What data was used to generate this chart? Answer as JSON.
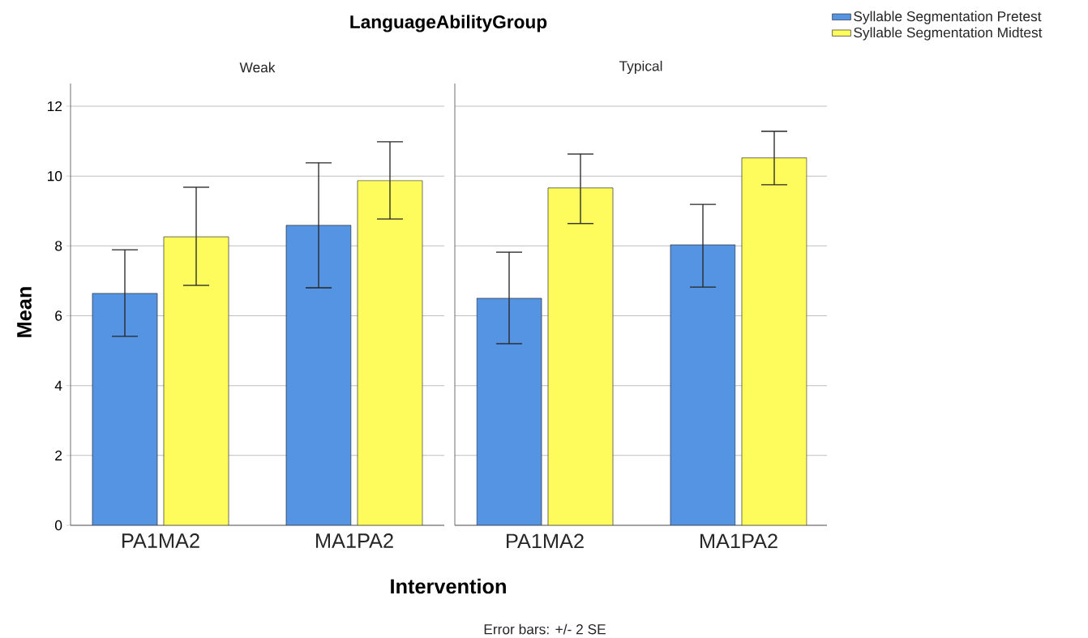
{
  "chart_data": [
    {
      "type": "bar",
      "title": "LanguageAbilityGroup",
      "subtitle": "Weak",
      "xlabel": "Intervention",
      "ylabel": "Mean",
      "annotations": [
        "Error bars: +/- 2 SE"
      ],
      "categories": [
        "PA1MA2",
        "MA1PA2"
      ],
      "ylim": [
        0,
        12.65
      ],
      "yticks": [
        0,
        2,
        4,
        6,
        8,
        10,
        12
      ],
      "grid": "y",
      "series": [
        {
          "color": "#5593e3",
          "values": [
            6.64,
            8.59
          ],
          "errors": [
            [
              5.41,
              7.89
            ],
            [
              6.8,
              10.38
            ]
          ]
        },
        {
          "color": "#fdfc5c",
          "values": [
            8.26,
            9.87
          ],
          "errors": [
            [
              6.87,
              9.68
            ],
            [
              8.77,
              10.98
            ]
          ]
        }
      ]
    },
    {
      "type": "bar",
      "subtitle": "Typical",
      "categories": [
        "PA1MA2",
        "MA1PA2"
      ],
      "ylim": [
        0,
        12.65
      ],
      "yticks": [
        0,
        2,
        4,
        6,
        8,
        10,
        12
      ],
      "grid": "y",
      "tick_labels": "x",
      "legend": "top right",
      "series": [
        {
          "name": "Syllable Segmentation Pretest",
          "color": "#5593e3",
          "values": [
            6.5,
            8.03
          ],
          "errors": [
            [
              5.2,
              7.82
            ],
            [
              6.82,
              9.19
            ]
          ]
        },
        {
          "name": "Syllable Segmentation Midtest",
          "color": "#fdfc5c",
          "values": [
            9.66,
            10.52
          ],
          "errors": [
            [
              8.64,
              10.63
            ],
            [
              9.75,
              11.28
            ]
          ]
        }
      ]
    }
  ]
}
